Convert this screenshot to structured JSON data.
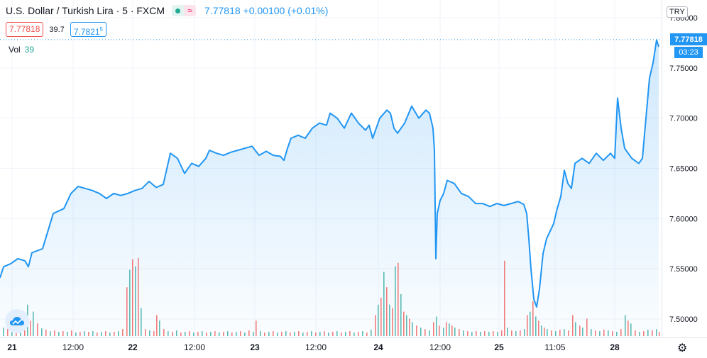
{
  "header": {
    "title": "U.S. Dollar / Turkish Lira · 5 · FXCM",
    "last_price": "7.77818",
    "change": "+0.00100 (+0.01%)",
    "bid": "7.77818",
    "spread": "39.7",
    "ask": "7.7821",
    "ask_super": "5"
  },
  "volume": {
    "label": "Vol",
    "value": "39"
  },
  "currency": "TRY",
  "price_tag": "7.77818",
  "countdown": "03:23",
  "colors": {
    "line": "#2196f3",
    "up": "#26a69a",
    "down": "#ef5350",
    "grid": "#f0f3fa",
    "fill": "#2196f3"
  },
  "icons": {
    "settings": "gear-icon",
    "logo": "tradingview-cloud-icon"
  },
  "chart_data": {
    "type": "area",
    "title": "U.S. Dollar / Turkish Lira · 5 · FXCM",
    "xlabel": "",
    "ylabel": "",
    "ylim": [
      7.478,
      7.808
    ],
    "y_ticks": [
      "7.80000",
      "7.75000",
      "7.70000",
      "7.65000",
      "7.60000",
      "7.55000",
      "7.50000"
    ],
    "x_ticks": [
      "21",
      "12:00",
      "22",
      "12:00",
      "23",
      "12:00",
      "24",
      "12:00",
      "25",
      "11:05",
      "28"
    ],
    "grid": true,
    "price_points": [
      [
        0,
        7.541
      ],
      [
        5,
        7.552
      ],
      [
        15,
        7.555
      ],
      [
        25,
        7.56
      ],
      [
        35,
        7.558
      ],
      [
        40,
        7.552
      ],
      [
        45,
        7.566
      ],
      [
        60,
        7.57
      ],
      [
        75,
        7.605
      ],
      [
        90,
        7.61
      ],
      [
        100,
        7.625
      ],
      [
        110,
        7.632
      ],
      [
        120,
        7.63
      ],
      [
        130,
        7.628
      ],
      [
        140,
        7.625
      ],
      [
        150,
        7.62
      ],
      [
        160,
        7.625
      ],
      [
        170,
        7.623
      ],
      [
        180,
        7.625
      ],
      [
        190,
        7.628
      ],
      [
        200,
        7.63
      ],
      [
        210,
        7.637
      ],
      [
        220,
        7.631
      ],
      [
        230,
        7.634
      ],
      [
        240,
        7.665
      ],
      [
        250,
        7.66
      ],
      [
        260,
        7.645
      ],
      [
        270,
        7.655
      ],
      [
        280,
        7.652
      ],
      [
        290,
        7.66
      ],
      [
        295,
        7.668
      ],
      [
        305,
        7.665
      ],
      [
        315,
        7.663
      ],
      [
        325,
        7.666
      ],
      [
        335,
        7.668
      ],
      [
        345,
        7.67
      ],
      [
        355,
        7.672
      ],
      [
        365,
        7.663
      ],
      [
        375,
        7.667
      ],
      [
        385,
        7.663
      ],
      [
        395,
        7.662
      ],
      [
        400,
        7.658
      ],
      [
        405,
        7.67
      ],
      [
        410,
        7.68
      ],
      [
        420,
        7.683
      ],
      [
        430,
        7.68
      ],
      [
        440,
        7.69
      ],
      [
        450,
        7.695
      ],
      [
        460,
        7.693
      ],
      [
        465,
        7.705
      ],
      [
        475,
        7.7
      ],
      [
        485,
        7.69
      ],
      [
        495,
        7.705
      ],
      [
        505,
        7.695
      ],
      [
        515,
        7.688
      ],
      [
        520,
        7.693
      ],
      [
        525,
        7.68
      ],
      [
        535,
        7.7
      ],
      [
        545,
        7.708
      ],
      [
        550,
        7.705
      ],
      [
        555,
        7.69
      ],
      [
        560,
        7.685
      ],
      [
        570,
        7.695
      ],
      [
        580,
        7.712
      ],
      [
        590,
        7.7
      ],
      [
        600,
        7.708
      ],
      [
        605,
        7.705
      ],
      [
        610,
        7.69
      ],
      [
        612,
        7.668
      ],
      [
        614,
        7.56
      ],
      [
        616,
        7.605
      ],
      [
        620,
        7.618
      ],
      [
        625,
        7.625
      ],
      [
        630,
        7.638
      ],
      [
        640,
        7.635
      ],
      [
        650,
        7.625
      ],
      [
        660,
        7.622
      ],
      [
        670,
        7.615
      ],
      [
        680,
        7.615
      ],
      [
        690,
        7.612
      ],
      [
        700,
        7.615
      ],
      [
        710,
        7.613
      ],
      [
        720,
        7.615
      ],
      [
        730,
        7.617
      ],
      [
        738,
        7.614
      ],
      [
        742,
        7.605
      ],
      [
        745,
        7.58
      ],
      [
        748,
        7.55
      ],
      [
        752,
        7.52
      ],
      [
        756,
        7.512
      ],
      [
        760,
        7.53
      ],
      [
        765,
        7.565
      ],
      [
        770,
        7.58
      ],
      [
        780,
        7.595
      ],
      [
        785,
        7.61
      ],
      [
        790,
        7.622
      ],
      [
        795,
        7.648
      ],
      [
        800,
        7.635
      ],
      [
        805,
        7.63
      ],
      [
        810,
        7.655
      ],
      [
        820,
        7.66
      ],
      [
        830,
        7.655
      ],
      [
        840,
        7.665
      ],
      [
        850,
        7.658
      ],
      [
        860,
        7.665
      ],
      [
        866,
        7.66
      ],
      [
        870,
        7.72
      ],
      [
        875,
        7.69
      ],
      [
        880,
        7.67
      ],
      [
        890,
        7.66
      ],
      [
        900,
        7.655
      ],
      [
        905,
        7.66
      ],
      [
        910,
        7.7
      ],
      [
        915,
        7.74
      ],
      [
        920,
        7.755
      ],
      [
        925,
        7.778
      ],
      [
        928,
        7.771
      ]
    ],
    "volume_max": 120,
    "volume_bars": [
      [
        4,
        12,
        "up"
      ],
      [
        10,
        10,
        "down"
      ],
      [
        16,
        14,
        "up"
      ],
      [
        22,
        8,
        "down"
      ],
      [
        28,
        9,
        "up"
      ],
      [
        34,
        12,
        "down"
      ],
      [
        38,
        45,
        "up"
      ],
      [
        42,
        22,
        "down"
      ],
      [
        46,
        35,
        "up"
      ],
      [
        52,
        18,
        "down"
      ],
      [
        58,
        11,
        "up"
      ],
      [
        64,
        9,
        "down"
      ],
      [
        70,
        7,
        "up"
      ],
      [
        76,
        8,
        "down"
      ],
      [
        82,
        6,
        "up"
      ],
      [
        88,
        7,
        "down"
      ],
      [
        94,
        6,
        "up"
      ],
      [
        100,
        8,
        "down"
      ],
      [
        106,
        5,
        "up"
      ],
      [
        112,
        6,
        "down"
      ],
      [
        118,
        7,
        "up"
      ],
      [
        124,
        6,
        "down"
      ],
      [
        130,
        7,
        "up"
      ],
      [
        136,
        5,
        "down"
      ],
      [
        142,
        6,
        "up"
      ],
      [
        148,
        7,
        "down"
      ],
      [
        154,
        5,
        "up"
      ],
      [
        160,
        6,
        "down"
      ],
      [
        166,
        7,
        "up"
      ],
      [
        172,
        10,
        "down"
      ],
      [
        178,
        70,
        "down"
      ],
      [
        182,
        95,
        "up"
      ],
      [
        186,
        110,
        "down"
      ],
      [
        190,
        100,
        "up"
      ],
      [
        194,
        112,
        "down"
      ],
      [
        198,
        40,
        "up"
      ],
      [
        204,
        10,
        "down"
      ],
      [
        210,
        8,
        "up"
      ],
      [
        216,
        7,
        "down"
      ],
      [
        220,
        30,
        "down"
      ],
      [
        224,
        22,
        "up"
      ],
      [
        230,
        10,
        "down"
      ],
      [
        236,
        7,
        "up"
      ],
      [
        242,
        6,
        "down"
      ],
      [
        248,
        8,
        "up"
      ],
      [
        254,
        5,
        "down"
      ],
      [
        260,
        6,
        "up"
      ],
      [
        266,
        7,
        "down"
      ],
      [
        272,
        5,
        "up"
      ],
      [
        278,
        6,
        "down"
      ],
      [
        284,
        7,
        "up"
      ],
      [
        290,
        5,
        "down"
      ],
      [
        296,
        6,
        "up"
      ],
      [
        302,
        7,
        "down"
      ],
      [
        308,
        5,
        "up"
      ],
      [
        314,
        6,
        "down"
      ],
      [
        320,
        7,
        "up"
      ],
      [
        326,
        5,
        "down"
      ],
      [
        332,
        6,
        "up"
      ],
      [
        338,
        7,
        "down"
      ],
      [
        344,
        5,
        "up"
      ],
      [
        350,
        8,
        "down"
      ],
      [
        356,
        6,
        "up"
      ],
      [
        360,
        22,
        "down"
      ],
      [
        366,
        7,
        "up"
      ],
      [
        372,
        5,
        "down"
      ],
      [
        378,
        6,
        "up"
      ],
      [
        384,
        7,
        "down"
      ],
      [
        390,
        5,
        "up"
      ],
      [
        396,
        6,
        "down"
      ],
      [
        402,
        7,
        "up"
      ],
      [
        408,
        5,
        "down"
      ],
      [
        414,
        6,
        "up"
      ],
      [
        420,
        7,
        "down"
      ],
      [
        426,
        5,
        "up"
      ],
      [
        432,
        6,
        "down"
      ],
      [
        438,
        7,
        "up"
      ],
      [
        444,
        5,
        "down"
      ],
      [
        450,
        6,
        "up"
      ],
      [
        456,
        7,
        "down"
      ],
      [
        462,
        5,
        "up"
      ],
      [
        468,
        6,
        "down"
      ],
      [
        474,
        7,
        "up"
      ],
      [
        480,
        5,
        "down"
      ],
      [
        486,
        6,
        "up"
      ],
      [
        492,
        7,
        "down"
      ],
      [
        498,
        5,
        "up"
      ],
      [
        504,
        6,
        "down"
      ],
      [
        510,
        7,
        "up"
      ],
      [
        516,
        5,
        "down"
      ],
      [
        522,
        9,
        "up"
      ],
      [
        528,
        30,
        "down"
      ],
      [
        532,
        45,
        "up"
      ],
      [
        536,
        55,
        "down"
      ],
      [
        540,
        92,
        "up"
      ],
      [
        544,
        70,
        "down"
      ],
      [
        548,
        45,
        "up"
      ],
      [
        552,
        40,
        "down"
      ],
      [
        556,
        100,
        "up"
      ],
      [
        560,
        105,
        "down"
      ],
      [
        564,
        60,
        "up"
      ],
      [
        568,
        35,
        "down"
      ],
      [
        572,
        30,
        "up"
      ],
      [
        576,
        25,
        "down"
      ],
      [
        580,
        20,
        "up"
      ],
      [
        586,
        15,
        "down"
      ],
      [
        592,
        12,
        "up"
      ],
      [
        598,
        10,
        "down"
      ],
      [
        604,
        8,
        "up"
      ],
      [
        610,
        20,
        "down"
      ],
      [
        614,
        28,
        "up"
      ],
      [
        618,
        15,
        "down"
      ],
      [
        624,
        12,
        "up"
      ],
      [
        628,
        20,
        "down"
      ],
      [
        632,
        18,
        "up"
      ],
      [
        636,
        15,
        "down"
      ],
      [
        640,
        12,
        "up"
      ],
      [
        646,
        10,
        "down"
      ],
      [
        652,
        8,
        "up"
      ],
      [
        658,
        7,
        "down"
      ],
      [
        664,
        6,
        "up"
      ],
      [
        670,
        7,
        "down"
      ],
      [
        676,
        6,
        "up"
      ],
      [
        682,
        7,
        "down"
      ],
      [
        688,
        6,
        "up"
      ],
      [
        694,
        7,
        "down"
      ],
      [
        700,
        6,
        "up"
      ],
      [
        706,
        8,
        "down"
      ],
      [
        710,
        108,
        "down"
      ],
      [
        714,
        12,
        "up"
      ],
      [
        720,
        8,
        "down"
      ],
      [
        726,
        7,
        "up"
      ],
      [
        732,
        8,
        "down"
      ],
      [
        738,
        10,
        "up"
      ],
      [
        742,
        30,
        "down"
      ],
      [
        746,
        35,
        "up"
      ],
      [
        750,
        50,
        "down"
      ],
      [
        754,
        28,
        "up"
      ],
      [
        758,
        22,
        "down"
      ],
      [
        762,
        15,
        "up"
      ],
      [
        766,
        12,
        "down"
      ],
      [
        770,
        10,
        "up"
      ],
      [
        776,
        8,
        "down"
      ],
      [
        782,
        7,
        "up"
      ],
      [
        788,
        9,
        "down"
      ],
      [
        794,
        10,
        "up"
      ],
      [
        800,
        8,
        "down"
      ],
      [
        806,
        30,
        "down"
      ],
      [
        810,
        20,
        "up"
      ],
      [
        816,
        15,
        "down"
      ],
      [
        820,
        12,
        "up"
      ],
      [
        826,
        25,
        "down"
      ],
      [
        832,
        10,
        "up"
      ],
      [
        838,
        8,
        "down"
      ],
      [
        844,
        7,
        "up"
      ],
      [
        850,
        9,
        "down"
      ],
      [
        856,
        8,
        "up"
      ],
      [
        862,
        7,
        "down"
      ],
      [
        868,
        6,
        "up"
      ],
      [
        874,
        10,
        "down"
      ],
      [
        880,
        30,
        "up"
      ],
      [
        884,
        22,
        "down"
      ],
      [
        888,
        18,
        "up"
      ],
      [
        894,
        8,
        "down"
      ],
      [
        900,
        6,
        "up"
      ],
      [
        906,
        7,
        "down"
      ],
      [
        912,
        9,
        "up"
      ],
      [
        918,
        8,
        "down"
      ],
      [
        924,
        10,
        "up"
      ],
      [
        928,
        6,
        "down"
      ]
    ]
  }
}
